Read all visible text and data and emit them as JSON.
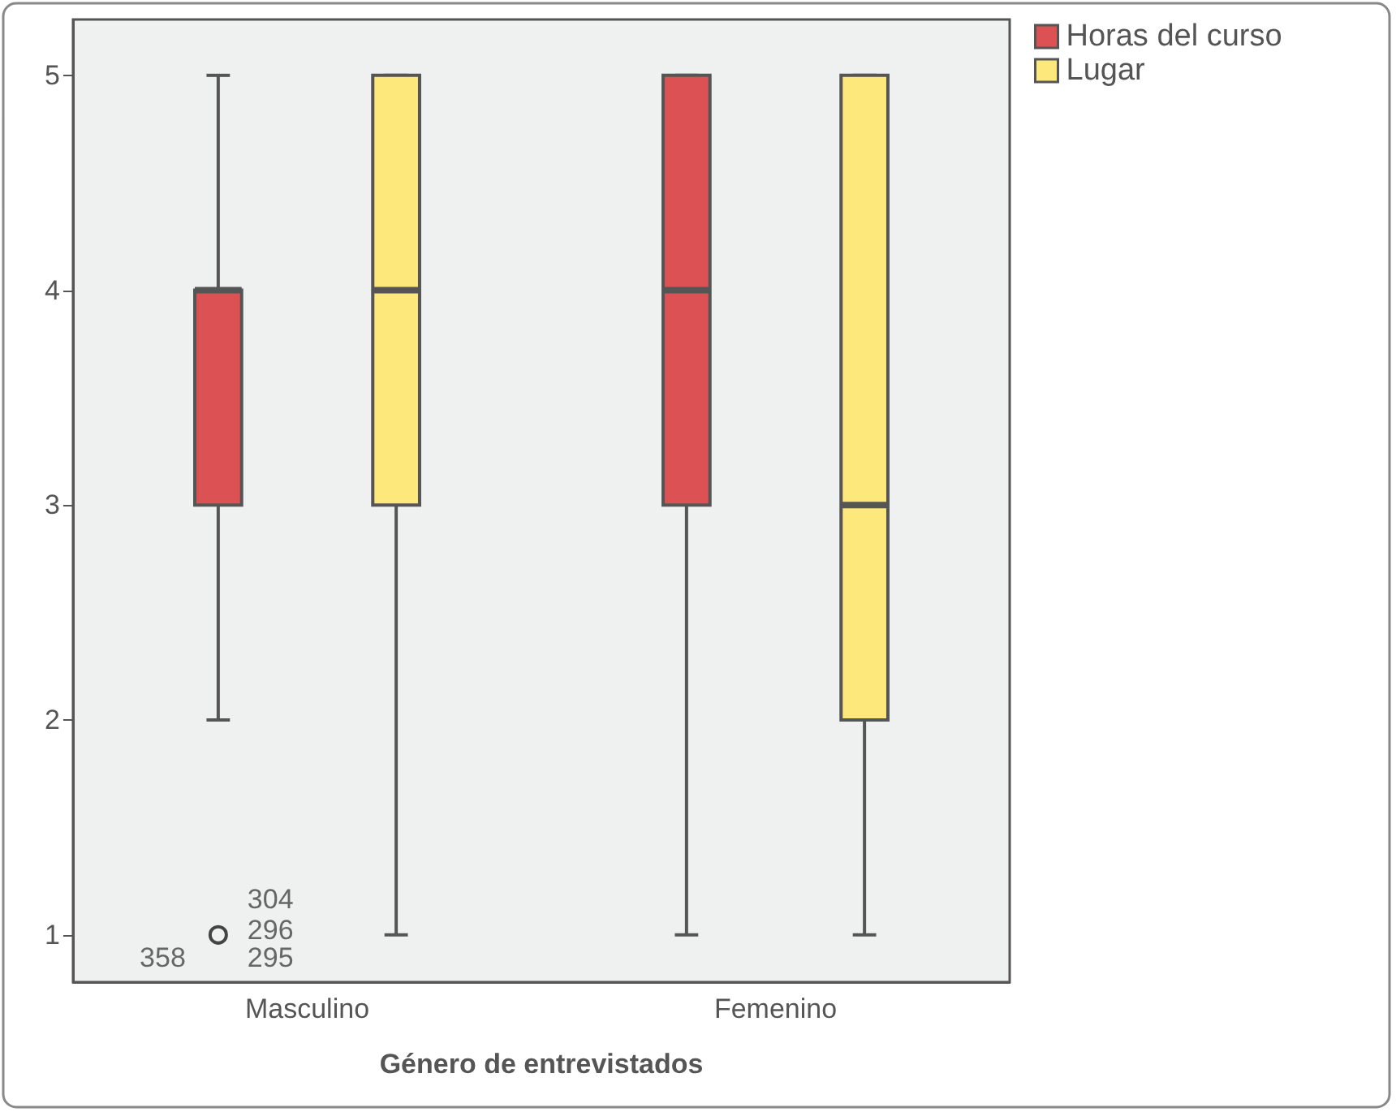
{
  "chart_data": {
    "type": "box",
    "xlabel": "Género de entrevistados",
    "categories": [
      "Masculino",
      "Femenino"
    ],
    "ylim": [
      0.78,
      5.26
    ],
    "yticks": [
      1,
      2,
      3,
      4,
      5
    ],
    "grid": false,
    "legend": "top right",
    "series": [
      {
        "name": "Horas del curso",
        "color": "#dc5254",
        "boxes": [
          {
            "low": 2,
            "q1": 3,
            "median": 4,
            "q3": 4,
            "high": 5,
            "outliers": [
              1
            ]
          },
          {
            "low": 1,
            "q1": 3,
            "median": 4,
            "q3": 5,
            "high": 5
          }
        ]
      },
      {
        "name": "Lugar",
        "color": "#fde87c",
        "boxes": [
          {
            "low": 1,
            "q1": 3,
            "median": 4,
            "q3": 5,
            "high": 5
          },
          {
            "low": 1,
            "q1": 2,
            "median": 3,
            "q3": 5,
            "high": 5
          }
        ]
      }
    ],
    "annotations": [
      "304",
      "296",
      "295",
      "358"
    ]
  }
}
